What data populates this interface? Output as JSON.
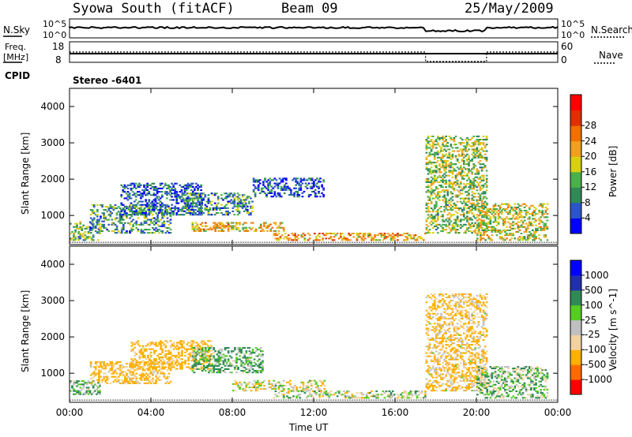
{
  "header": {
    "station": "Syowa South (fitACF)",
    "beam": "Beam 09",
    "date": "25/May/2009"
  },
  "params": {
    "nsky_label": "N.Sky",
    "nsky_top": "10^5",
    "nsky_bottom": "10^0",
    "nsearch_label": "N.Search",
    "nsearch_top": "10^5",
    "nsearch_bottom": "10^0",
    "freq_label": "Freq.",
    "freq_unit": "[MHz]",
    "freq_top": "18",
    "freq_bottom": "8",
    "nave_label": "Nave",
    "nave_top": "60",
    "nave_bottom": "0",
    "cpid_label": "CPID",
    "cpid_value": "Stereo -6401"
  },
  "colors": {
    "power": [
      "#0000ff",
      "#2b55c8",
      "#2f8a55",
      "#49b04a",
      "#d8d010",
      "#f0a020",
      "#f07000",
      "#e03000",
      "#ff0000"
    ],
    "velocity": [
      "#ff0000",
      "#ff6a00",
      "#ffb000",
      "#f2d2a0",
      "#c0c0c0",
      "#55cc22",
      "#2f8a55",
      "#2030aa",
      "#0000ff"
    ]
  },
  "chart_data": [
    {
      "type": "heatmap",
      "title": "Power",
      "xlabel": "",
      "ylabel": "Slant Range [km]",
      "x_range_hours": [
        0,
        24
      ],
      "ylim": [
        200,
        4500
      ],
      "yticks": [
        "1000",
        "2000",
        "3000",
        "4000"
      ],
      "colorbar_label": "Power [dB]",
      "colorbar_ticks": [
        "4",
        "8",
        "12",
        "16",
        "20",
        "24",
        "28"
      ],
      "colorbar_range": [
        0,
        32
      ],
      "regions": [
        {
          "t0": 0.0,
          "t1": 1.5,
          "r0": 300,
          "r1": 800,
          "value": 12
        },
        {
          "t0": 1.0,
          "t1": 5.0,
          "r0": 500,
          "r1": 1300,
          "value": 10
        },
        {
          "t0": 2.5,
          "t1": 6.5,
          "r0": 1000,
          "r1": 1900,
          "value": 6
        },
        {
          "t0": 5.5,
          "t1": 9.0,
          "r0": 1000,
          "r1": 1600,
          "value": 9
        },
        {
          "t0": 6.0,
          "t1": 10.5,
          "r0": 550,
          "r1": 800,
          "value": 18
        },
        {
          "t0": 9.0,
          "t1": 12.5,
          "r0": 1500,
          "r1": 2000,
          "value": 5
        },
        {
          "t0": 10.0,
          "t1": 17.5,
          "r0": 300,
          "r1": 500,
          "value": 20
        },
        {
          "t0": 17.5,
          "t1": 20.5,
          "r0": 500,
          "r1": 3200,
          "value": 14
        },
        {
          "t0": 20.0,
          "t1": 23.5,
          "r0": 300,
          "r1": 1300,
          "value": 16
        }
      ]
    },
    {
      "type": "heatmap",
      "title": "Velocity",
      "xlabel": "Time UT",
      "ylabel": "Slant Range [km]",
      "x_range_hours": [
        0,
        24
      ],
      "xticks": [
        "00:00",
        "04:00",
        "08:00",
        "12:00",
        "16:00",
        "20:00",
        "00:00"
      ],
      "ylim": [
        200,
        4500
      ],
      "yticks": [
        "1000",
        "2000",
        "3000",
        "4000"
      ],
      "colorbar_label": "Velocity [m s^-1]",
      "colorbar_ticks": [
        "1000",
        "500",
        "100",
        "25",
        "-25",
        "-100",
        "-500",
        "-1000"
      ],
      "regions": [
        {
          "t0": 0.0,
          "t1": 1.5,
          "r0": 400,
          "r1": 800,
          "value": 100
        },
        {
          "t0": 1.0,
          "t1": 5.0,
          "r0": 700,
          "r1": 1300,
          "value": -150
        },
        {
          "t0": 3.0,
          "t1": 7.0,
          "r0": 1100,
          "r1": 1900,
          "value": -200
        },
        {
          "t0": 6.0,
          "t1": 9.5,
          "r0": 1000,
          "r1": 1700,
          "value": 120
        },
        {
          "t0": 8.0,
          "t1": 12.5,
          "r0": 500,
          "r1": 800,
          "value": -40
        },
        {
          "t0": 10.0,
          "t1": 17.5,
          "r0": 300,
          "r1": 500,
          "value": 10
        },
        {
          "t0": 17.5,
          "t1": 20.5,
          "r0": 500,
          "r1": 3200,
          "value": -120
        },
        {
          "t0": 20.0,
          "t1": 23.5,
          "r0": 300,
          "r1": 1200,
          "value": 60
        }
      ]
    }
  ]
}
